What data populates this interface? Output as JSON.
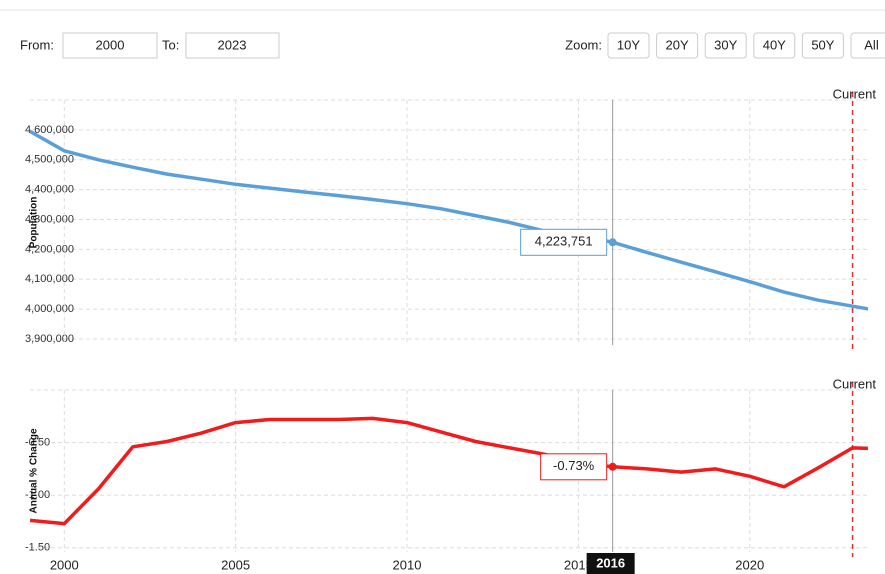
{
  "controls": {
    "from_label": "From:",
    "from_value": "2000",
    "to_label": "To:",
    "to_value": "2023",
    "zoom_label": "Zoom:",
    "zoom_buttons": [
      "10Y",
      "20Y",
      "30Y",
      "40Y",
      "50Y",
      "All"
    ]
  },
  "chart_data": [
    {
      "type": "line",
      "y_label": "Population",
      "color": "#5b9fd9",
      "x": [
        1999,
        2000,
        2001,
        2002,
        2003,
        2004,
        2005,
        2006,
        2007,
        2008,
        2009,
        2010,
        2011,
        2012,
        2013,
        2014,
        2015,
        2016,
        2017,
        2018,
        2019,
        2020,
        2021,
        2022,
        2023,
        2024
      ],
      "values": [
        4595000,
        4530000,
        4500000,
        4475000,
        4452000,
        4435000,
        4418000,
        4405000,
        4392000,
        4380000,
        4367000,
        4353000,
        4336000,
        4313000,
        4290000,
        4262000,
        4248000,
        4223751,
        4190000,
        4157000,
        4125000,
        4092000,
        4057000,
        4030000,
        4010000,
        3990000
      ],
      "xlim": [
        1999,
        2023.45
      ],
      "ylim": [
        3880000,
        4700000
      ],
      "yticks": [
        {
          "value": 3900000,
          "label": "3,900,000"
        },
        {
          "value": 4000000,
          "label": "4,000,000"
        },
        {
          "value": 4100000,
          "label": "4,100,000"
        },
        {
          "value": 4200000,
          "label": "4,200,000"
        },
        {
          "value": 4300000,
          "label": "4,300,000"
        },
        {
          "value": 4400000,
          "label": "4,400,000"
        },
        {
          "value": 4500000,
          "label": "4,500,000"
        },
        {
          "value": 4600000,
          "label": "4,600,000"
        }
      ],
      "grid": true,
      "current": {
        "x": 2023,
        "label": "Current"
      },
      "tooltip": {
        "x": 2016,
        "label": "4,223,751"
      }
    },
    {
      "type": "line",
      "y_label": "Annual % Change",
      "color": "#f21b1b",
      "x": [
        1999,
        2000,
        2001,
        2002,
        2003,
        2004,
        2005,
        2006,
        2007,
        2008,
        2009,
        2010,
        2011,
        2012,
        2013,
        2014,
        2015,
        2016,
        2017,
        2018,
        2019,
        2020,
        2021,
        2022,
        2023,
        2024
      ],
      "values": [
        -1.24,
        -1.27,
        -0.94,
        -0.54,
        -0.49,
        -0.41,
        -0.31,
        -0.28,
        -0.28,
        -0.28,
        -0.27,
        -0.31,
        -0.4,
        -0.49,
        -0.55,
        -0.61,
        -0.69,
        -0.73,
        -0.75,
        -0.78,
        -0.75,
        -0.82,
        -0.92,
        -0.74,
        -0.55,
        -0.56
      ],
      "xlim": [
        1999,
        2023.45
      ],
      "ylim": [
        -1.54,
        0
      ],
      "xticks": [
        2000,
        2005,
        2010,
        2015,
        2020
      ],
      "yticks": [
        {
          "value": -1.5,
          "label": "-1.50"
        },
        {
          "value": -1.0,
          "label": "-1.00"
        },
        {
          "value": -0.5,
          "label": "-0.50"
        }
      ],
      "grid": true,
      "current": {
        "x": 2023,
        "label": "Current"
      },
      "tooltip": {
        "x": 2016,
        "label": "-0.73%"
      }
    }
  ]
}
